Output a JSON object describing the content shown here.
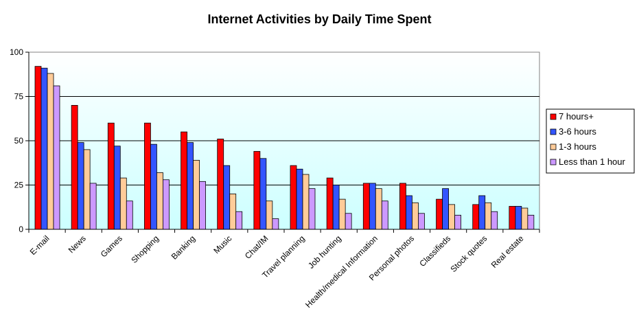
{
  "chart_data": {
    "type": "bar",
    "title": "Internet Activities by Daily Time Spent",
    "xlabel": "",
    "ylabel": "",
    "ylim": [
      0,
      100
    ],
    "yticks": [
      0,
      25,
      50,
      75,
      100
    ],
    "grid": true,
    "legend_position": "right",
    "categories": [
      "E-mail",
      "News",
      "Games",
      "Shopping",
      "Banking",
      "Music",
      "Chat/IM",
      "Travel planning",
      "Job hunting",
      "Health/medical Information",
      "Personal photos",
      "Classifieds",
      "Stock quotes",
      "Real estate"
    ],
    "series": [
      {
        "name": "7 hours+",
        "color": "#ff0000",
        "values": [
          92,
          70,
          60,
          60,
          55,
          51,
          44,
          36,
          29,
          26,
          26,
          17,
          14,
          13
        ]
      },
      {
        "name": "3-6 hours",
        "color": "#3355ff",
        "values": [
          91,
          49,
          47,
          48,
          49,
          36,
          40,
          34,
          25,
          26,
          19,
          23,
          19,
          13
        ]
      },
      {
        "name": "1-3 hours",
        "color": "#ffcc99",
        "values": [
          88,
          45,
          29,
          32,
          39,
          20,
          16,
          31,
          17,
          23,
          15,
          14,
          15,
          12
        ]
      },
      {
        "name": "Less than 1 hour",
        "color": "#cc99ff",
        "values": [
          81,
          26,
          16,
          28,
          27,
          10,
          6,
          23,
          9,
          16,
          9,
          8,
          10,
          8
        ]
      }
    ]
  }
}
